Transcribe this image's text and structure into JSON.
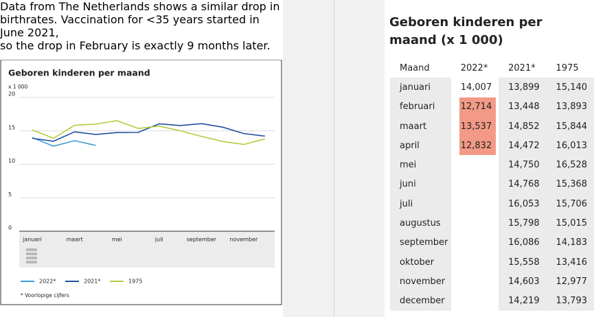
{
  "post": {
    "lines": [
      "Data from The Netherlands shows a similar drop in",
      "birthrates. Vaccination for <35 years started in June 2021,",
      "so the drop in February is exactly 9 months later."
    ]
  },
  "chart_data": {
    "type": "line",
    "title": "Geboren kinderen per maand",
    "y_unit": "x 1 000",
    "categories": [
      "januari",
      null,
      "maart",
      null,
      "mei",
      null,
      "juli",
      null,
      "september",
      null,
      "november",
      null
    ],
    "series": [
      {
        "name": "2022*",
        "color": "#3b9ad6",
        "values": [
          14.007,
          12.714,
          13.537,
          12.832,
          null,
          null,
          null,
          null,
          null,
          null,
          null,
          null
        ]
      },
      {
        "name": "2021*",
        "color": "#1f4f9e",
        "values": [
          13.899,
          13.448,
          14.852,
          14.472,
          14.75,
          14.768,
          16.053,
          15.798,
          16.086,
          15.558,
          14.603,
          14.219
        ]
      },
      {
        "name": "1975",
        "color": "#b3cc3c",
        "values": [
          15.14,
          13.893,
          15.844,
          16.013,
          16.528,
          15.368,
          15.706,
          15.015,
          14.183,
          13.416,
          12.977,
          13.793
        ]
      }
    ],
    "ylim": [
      0,
      20
    ],
    "yticks": [
      0,
      5,
      10,
      15,
      20
    ],
    "grid": true,
    "legend": "bottom",
    "footnote": "* Voorlopige cijfers"
  },
  "table": {
    "title": "Geboren kinderen per maand (x 1 000)",
    "header": [
      "Maand",
      "2022*",
      "2021*",
      "1975"
    ],
    "rows": [
      [
        "januari",
        "14,007",
        "13,899",
        "15,140"
      ],
      [
        "februari",
        "12,714",
        "13,448",
        "13,893"
      ],
      [
        "maart",
        "13,537",
        "14,852",
        "15,844"
      ],
      [
        "april",
        "12,832",
        "14,472",
        "16,013"
      ],
      [
        "mei",
        null,
        "14,750",
        "16,528"
      ],
      [
        "juni",
        null,
        "14,768",
        "15,368"
      ],
      [
        "juli",
        null,
        "16,053",
        "15,706"
      ],
      [
        "augustus",
        null,
        "15,798",
        "15,015"
      ],
      [
        "september",
        null,
        "16,086",
        "14,183"
      ],
      [
        "oktober",
        null,
        "15,558",
        "13,416"
      ],
      [
        "november",
        null,
        "14,603",
        "12,977"
      ],
      [
        "december",
        null,
        "14,219",
        "13,793"
      ]
    ],
    "highlight": {
      "color": "#f29a86",
      "column": 1,
      "rows": [
        1,
        2,
        3
      ]
    }
  }
}
